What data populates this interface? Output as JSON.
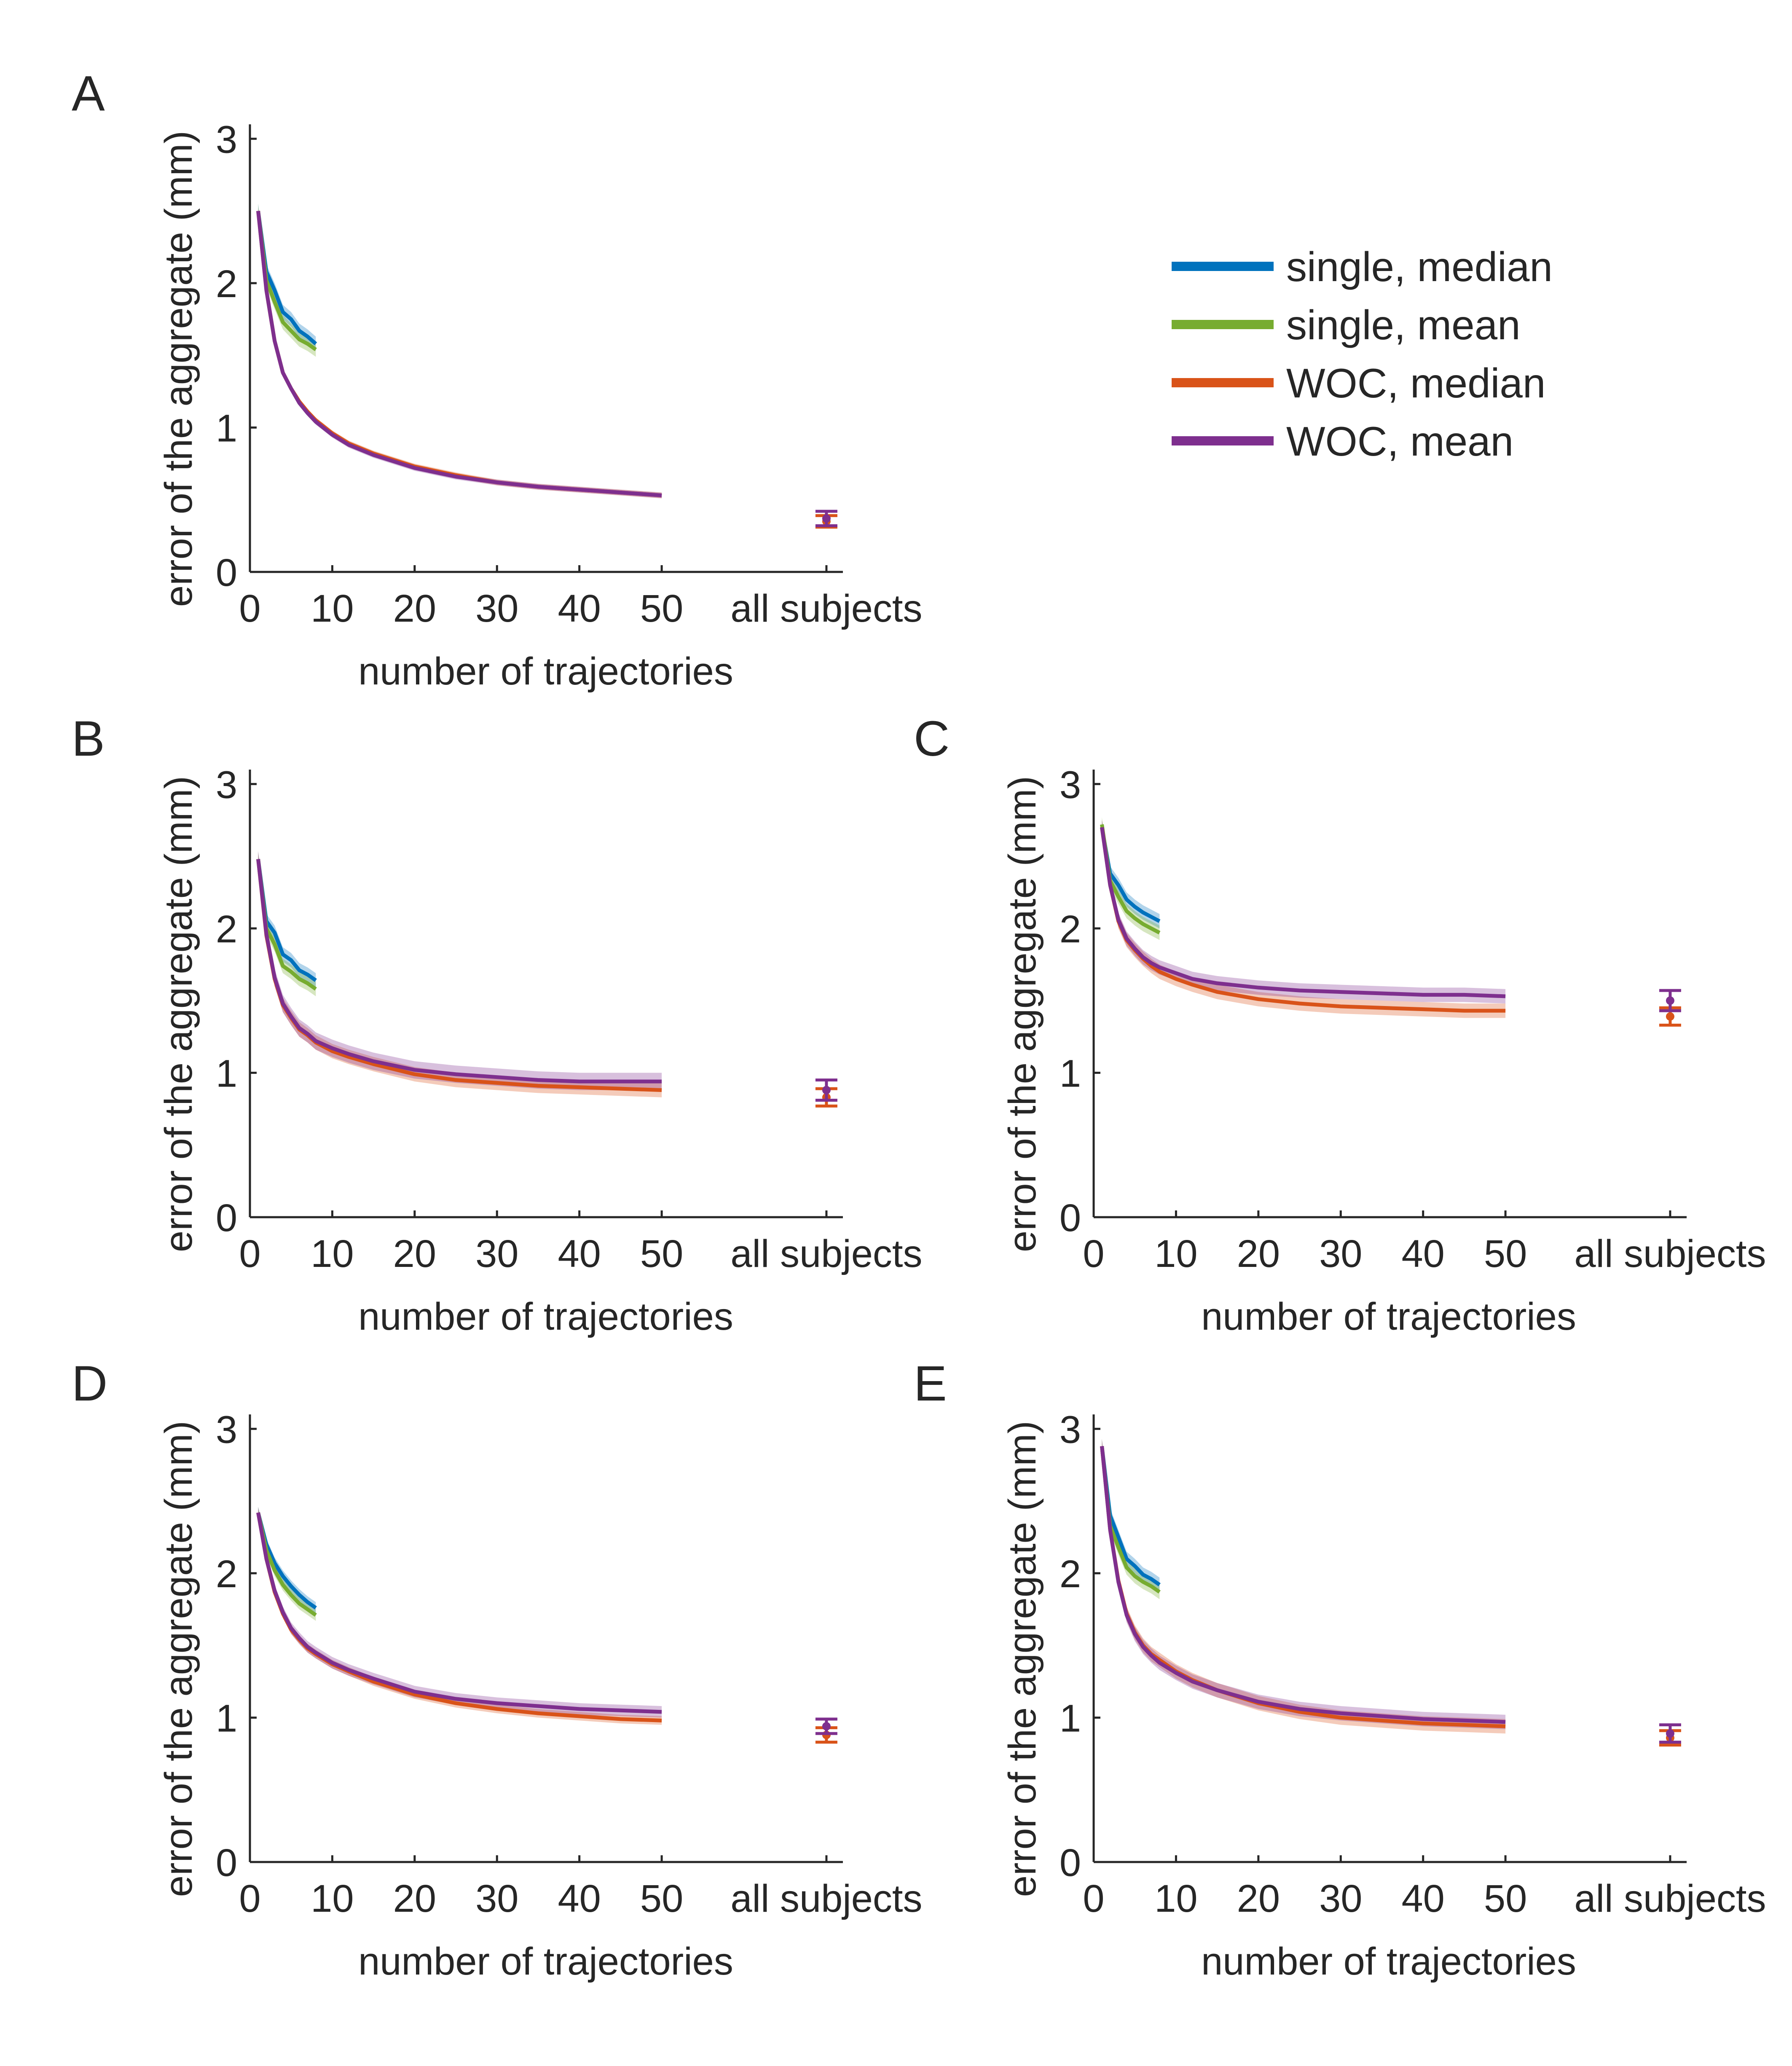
{
  "legend": [
    {
      "label": "single, median",
      "color": "#0072BD"
    },
    {
      "label": "single, mean",
      "color": "#77AC30"
    },
    {
      "label": "WOC, median",
      "color": "#D95319"
    },
    {
      "label": "WOC, mean",
      "color": "#7E2F8E"
    }
  ],
  "chart_data": [
    {
      "panel": "A",
      "type": "line",
      "xlabel": "number of trajectories",
      "ylabel": "error of the aggregate (mm)",
      "xlim": [
        0,
        72
      ],
      "ylim": [
        0,
        3.1
      ],
      "xticks": [
        0,
        10,
        20,
        30,
        40,
        50
      ],
      "x_extra_tick_label": "all subjects",
      "x_extra_tick_position": 70,
      "yticks": [
        0,
        1,
        2,
        3
      ],
      "series": [
        {
          "name": "single, median",
          "color": "#0072BD",
          "x": [
            1,
            2,
            3,
            4,
            5,
            6,
            7,
            8
          ],
          "values": [
            2.5,
            2.08,
            1.95,
            1.8,
            1.75,
            1.67,
            1.63,
            1.58
          ],
          "band": 0.05
        },
        {
          "name": "single, mean",
          "color": "#77AC30",
          "x": [
            1,
            2,
            3,
            4,
            5,
            6,
            7,
            8
          ],
          "values": [
            2.5,
            2.02,
            1.87,
            1.73,
            1.67,
            1.61,
            1.58,
            1.54
          ],
          "band": 0.05
        },
        {
          "name": "WOC, median",
          "color": "#D95319",
          "x": [
            1,
            2,
            3,
            4,
            5,
            6,
            7,
            8,
            10,
            12,
            15,
            20,
            25,
            30,
            35,
            40,
            45,
            50
          ],
          "values": [
            2.5,
            1.95,
            1.6,
            1.38,
            1.27,
            1.18,
            1.11,
            1.05,
            0.96,
            0.89,
            0.82,
            0.73,
            0.67,
            0.62,
            0.59,
            0.57,
            0.55,
            0.53
          ],
          "band": 0.02
        },
        {
          "name": "WOC, mean",
          "color": "#7E2F8E",
          "x": [
            1,
            2,
            3,
            4,
            5,
            6,
            7,
            8,
            10,
            12,
            15,
            20,
            25,
            30,
            35,
            40,
            45,
            50
          ],
          "values": [
            2.5,
            1.95,
            1.6,
            1.38,
            1.27,
            1.17,
            1.1,
            1.04,
            0.95,
            0.88,
            0.81,
            0.72,
            0.66,
            0.62,
            0.59,
            0.57,
            0.55,
            0.53
          ],
          "band": 0.02
        }
      ],
      "all_subjects": [
        {
          "name": "WOC, median",
          "color": "#D95319",
          "value": 0.35,
          "err": 0.04
        },
        {
          "name": "WOC, mean",
          "color": "#7E2F8E",
          "value": 0.37,
          "err": 0.05
        }
      ]
    },
    {
      "panel": "B",
      "type": "line",
      "xlabel": "number of trajectories",
      "ylabel": "error of the aggregate (mm)",
      "xlim": [
        0,
        72
      ],
      "ylim": [
        0,
        3.1
      ],
      "xticks": [
        0,
        10,
        20,
        30,
        40,
        50
      ],
      "x_extra_tick_label": "all subjects",
      "x_extra_tick_position": 70,
      "yticks": [
        0,
        1,
        2,
        3
      ],
      "series": [
        {
          "name": "single, median",
          "color": "#0072BD",
          "x": [
            1,
            2,
            3,
            4,
            5,
            6,
            7,
            8
          ],
          "values": [
            2.48,
            2.05,
            1.97,
            1.82,
            1.78,
            1.71,
            1.68,
            1.64
          ],
          "band": 0.05
        },
        {
          "name": "single, mean",
          "color": "#77AC30",
          "x": [
            1,
            2,
            3,
            4,
            5,
            6,
            7,
            8
          ],
          "values": [
            2.48,
            2.0,
            1.89,
            1.74,
            1.7,
            1.65,
            1.62,
            1.58
          ],
          "band": 0.05
        },
        {
          "name": "WOC, median",
          "color": "#D95319",
          "x": [
            1,
            2,
            3,
            4,
            5,
            6,
            7,
            8,
            10,
            12,
            15,
            20,
            25,
            30,
            35,
            40,
            45,
            50
          ],
          "values": [
            2.48,
            1.95,
            1.65,
            1.47,
            1.38,
            1.3,
            1.26,
            1.21,
            1.15,
            1.11,
            1.06,
            0.99,
            0.95,
            0.93,
            0.91,
            0.9,
            0.89,
            0.88
          ],
          "band": 0.05
        },
        {
          "name": "WOC, mean",
          "color": "#7E2F8E",
          "x": [
            1,
            2,
            3,
            4,
            5,
            6,
            7,
            8,
            10,
            12,
            15,
            20,
            25,
            30,
            35,
            40,
            45,
            50
          ],
          "values": [
            2.48,
            1.96,
            1.66,
            1.48,
            1.39,
            1.31,
            1.27,
            1.22,
            1.17,
            1.13,
            1.08,
            1.02,
            0.99,
            0.97,
            0.95,
            0.94,
            0.94,
            0.94
          ],
          "band": 0.06
        }
      ],
      "all_subjects": [
        {
          "name": "WOC, median",
          "color": "#D95319",
          "value": 0.83,
          "err": 0.06
        },
        {
          "name": "WOC, mean",
          "color": "#7E2F8E",
          "value": 0.88,
          "err": 0.07
        }
      ]
    },
    {
      "panel": "C",
      "type": "line",
      "xlabel": "number of trajectories",
      "ylabel": "error of the aggregate (mm)",
      "xlim": [
        0,
        72
      ],
      "ylim": [
        0,
        3.1
      ],
      "xticks": [
        0,
        10,
        20,
        30,
        40,
        50
      ],
      "x_extra_tick_label": "all subjects",
      "x_extra_tick_position": 70,
      "yticks": [
        0,
        1,
        2,
        3
      ],
      "series": [
        {
          "name": "single, median",
          "color": "#0072BD",
          "x": [
            1,
            2,
            3,
            4,
            5,
            6,
            7,
            8
          ],
          "values": [
            2.7,
            2.38,
            2.3,
            2.2,
            2.15,
            2.11,
            2.08,
            2.05
          ],
          "band": 0.05
        },
        {
          "name": "single, mean",
          "color": "#77AC30",
          "x": [
            1,
            2,
            3,
            4,
            5,
            6,
            7,
            8
          ],
          "values": [
            2.72,
            2.33,
            2.22,
            2.12,
            2.07,
            2.03,
            2.0,
            1.97
          ],
          "band": 0.05
        },
        {
          "name": "WOC, median",
          "color": "#D95319",
          "x": [
            1,
            2,
            3,
            4,
            5,
            6,
            7,
            8,
            10,
            12,
            15,
            20,
            25,
            30,
            35,
            40,
            45,
            50
          ],
          "values": [
            2.7,
            2.3,
            2.05,
            1.92,
            1.85,
            1.79,
            1.74,
            1.7,
            1.65,
            1.61,
            1.56,
            1.51,
            1.48,
            1.46,
            1.45,
            1.44,
            1.43,
            1.43
          ],
          "band": 0.05
        },
        {
          "name": "WOC, mean",
          "color": "#7E2F8E",
          "x": [
            1,
            2,
            3,
            4,
            5,
            6,
            7,
            8,
            10,
            12,
            15,
            20,
            25,
            30,
            35,
            40,
            45,
            50
          ],
          "values": [
            2.7,
            2.3,
            2.06,
            1.93,
            1.86,
            1.8,
            1.76,
            1.73,
            1.69,
            1.65,
            1.62,
            1.59,
            1.57,
            1.56,
            1.55,
            1.54,
            1.54,
            1.53
          ],
          "band": 0.05
        }
      ],
      "all_subjects": [
        {
          "name": "WOC, median",
          "color": "#D95319",
          "value": 1.39,
          "err": 0.06
        },
        {
          "name": "WOC, mean",
          "color": "#7E2F8E",
          "value": 1.5,
          "err": 0.07
        }
      ]
    },
    {
      "panel": "D",
      "type": "line",
      "xlabel": "number of trajectories",
      "ylabel": "error of the aggregate (mm)",
      "xlim": [
        0,
        72
      ],
      "ylim": [
        0,
        3.1
      ],
      "xticks": [
        0,
        10,
        20,
        30,
        40,
        50
      ],
      "x_extra_tick_label": "all subjects",
      "x_extra_tick_position": 70,
      "yticks": [
        0,
        1,
        2,
        3
      ],
      "series": [
        {
          "name": "single, median",
          "color": "#0072BD",
          "x": [
            1,
            2,
            3,
            4,
            5,
            6,
            7,
            8
          ],
          "values": [
            2.42,
            2.2,
            2.07,
            1.98,
            1.91,
            1.85,
            1.8,
            1.76
          ],
          "band": 0.04
        },
        {
          "name": "single, mean",
          "color": "#77AC30",
          "x": [
            1,
            2,
            3,
            4,
            5,
            6,
            7,
            8
          ],
          "values": [
            2.42,
            2.16,
            2.02,
            1.92,
            1.85,
            1.79,
            1.75,
            1.71
          ],
          "band": 0.04
        },
        {
          "name": "WOC, median",
          "color": "#D95319",
          "x": [
            1,
            2,
            3,
            4,
            5,
            6,
            7,
            8,
            10,
            12,
            15,
            20,
            25,
            30,
            35,
            40,
            45,
            50
          ],
          "values": [
            2.42,
            2.1,
            1.87,
            1.72,
            1.61,
            1.54,
            1.48,
            1.44,
            1.37,
            1.32,
            1.25,
            1.16,
            1.1,
            1.06,
            1.03,
            1.01,
            0.99,
            0.98
          ],
          "band": 0.03
        },
        {
          "name": "WOC, mean",
          "color": "#7E2F8E",
          "x": [
            1,
            2,
            3,
            4,
            5,
            6,
            7,
            8,
            10,
            12,
            15,
            20,
            25,
            30,
            35,
            40,
            45,
            50
          ],
          "values": [
            2.42,
            2.1,
            1.88,
            1.73,
            1.62,
            1.55,
            1.49,
            1.45,
            1.38,
            1.33,
            1.27,
            1.18,
            1.13,
            1.1,
            1.08,
            1.06,
            1.05,
            1.04
          ],
          "band": 0.04
        }
      ],
      "all_subjects": [
        {
          "name": "WOC, median",
          "color": "#D95319",
          "value": 0.88,
          "err": 0.05
        },
        {
          "name": "WOC, mean",
          "color": "#7E2F8E",
          "value": 0.94,
          "err": 0.05
        }
      ]
    },
    {
      "panel": "E",
      "type": "line",
      "xlabel": "number of trajectories",
      "ylabel": "error of the aggregate (mm)",
      "xlim": [
        0,
        72
      ],
      "ylim": [
        0,
        3.1
      ],
      "xticks": [
        0,
        10,
        20,
        30,
        40,
        50
      ],
      "x_extra_tick_label": "all subjects",
      "x_extra_tick_position": 70,
      "yticks": [
        0,
        1,
        2,
        3
      ],
      "series": [
        {
          "name": "single, median",
          "color": "#0072BD",
          "x": [
            1,
            2,
            3,
            4,
            5,
            6,
            7,
            8
          ],
          "values": [
            2.88,
            2.4,
            2.25,
            2.1,
            2.05,
            1.99,
            1.96,
            1.92
          ],
          "band": 0.05
        },
        {
          "name": "single, mean",
          "color": "#77AC30",
          "x": [
            1,
            2,
            3,
            4,
            5,
            6,
            7,
            8
          ],
          "values": [
            2.88,
            2.33,
            2.18,
            2.04,
            1.98,
            1.94,
            1.91,
            1.87
          ],
          "band": 0.05
        },
        {
          "name": "WOC, median",
          "color": "#D95319",
          "x": [
            1,
            2,
            3,
            4,
            5,
            6,
            7,
            8,
            10,
            12,
            15,
            20,
            25,
            30,
            35,
            40,
            45,
            50
          ],
          "values": [
            2.88,
            2.3,
            1.95,
            1.72,
            1.59,
            1.5,
            1.44,
            1.4,
            1.32,
            1.26,
            1.19,
            1.1,
            1.04,
            1.0,
            0.98,
            0.96,
            0.95,
            0.94
          ],
          "band": 0.05
        },
        {
          "name": "WOC, mean",
          "color": "#7E2F8E",
          "x": [
            1,
            2,
            3,
            4,
            5,
            6,
            7,
            8,
            10,
            12,
            15,
            20,
            25,
            30,
            35,
            40,
            45,
            50
          ],
          "values": [
            2.88,
            2.3,
            1.94,
            1.71,
            1.58,
            1.49,
            1.43,
            1.38,
            1.31,
            1.25,
            1.19,
            1.11,
            1.06,
            1.03,
            1.01,
            0.99,
            0.98,
            0.97
          ],
          "band": 0.05
        }
      ],
      "all_subjects": [
        {
          "name": "WOC, median",
          "color": "#D95319",
          "value": 0.86,
          "err": 0.05
        },
        {
          "name": "WOC, mean",
          "color": "#7E2F8E",
          "value": 0.89,
          "err": 0.06
        }
      ]
    }
  ]
}
